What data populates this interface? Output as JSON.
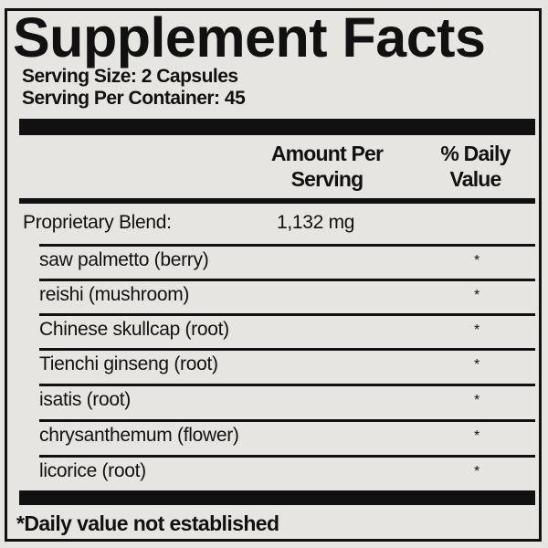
{
  "title": "Supplement Facts",
  "serving_size": "Serving Size: 2 Capsules",
  "servings_per_container": "Serving Per Container: 45",
  "header": {
    "amount_line1": "Amount Per",
    "amount_line2": "Serving",
    "dv_line1": "% Daily",
    "dv_line2": "Value"
  },
  "blend": {
    "label": "Proprietary Blend:",
    "amount": "1,132 mg"
  },
  "ingredients": [
    {
      "name": "saw palmetto (berry)",
      "dv": "*"
    },
    {
      "name": "reishi (mushroom)",
      "dv": "*"
    },
    {
      "name": "Chinese skullcap (root)",
      "dv": "*"
    },
    {
      "name": "Tienchi ginseng (root)",
      "dv": "*"
    },
    {
      "name": "isatis (root)",
      "dv": "*"
    },
    {
      "name": "chrysanthemum (flower)",
      "dv": "*"
    },
    {
      "name": "licorice (root)",
      "dv": "*"
    }
  ],
  "footnote": "*Daily value not established"
}
